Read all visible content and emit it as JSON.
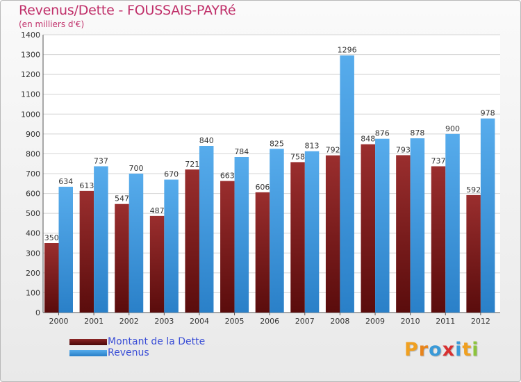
{
  "chart_data": {
    "type": "bar",
    "title": "Revenus/Dette - FOUSSAIS-PAYRé",
    "subtitle": "(en milliers d'€)",
    "categories": [
      "2000",
      "2001",
      "2002",
      "2003",
      "2004",
      "2005",
      "2006",
      "2007",
      "2008",
      "2009",
      "2010",
      "2011",
      "2012"
    ],
    "series": [
      {
        "name": "Montant de la Dette",
        "color": "#7a1a1a",
        "values": [
          350,
          613,
          547,
          487,
          721,
          663,
          606,
          758,
          792,
          848,
          793,
          737,
          592
        ]
      },
      {
        "name": "Revenus",
        "color": "#3f9be0",
        "values": [
          634,
          737,
          700,
          670,
          840,
          784,
          825,
          813,
          1296,
          876,
          878,
          900,
          978
        ]
      }
    ],
    "ylim": [
      0,
      1400
    ],
    "yticks": [
      0,
      100,
      200,
      300,
      400,
      500,
      600,
      700,
      800,
      900,
      1000,
      1100,
      1200,
      1300,
      1400
    ],
    "grid": true,
    "legend": "bottom-left"
  },
  "logo": {
    "letters": [
      {
        "ch": "P",
        "color": "#f0a020"
      },
      {
        "ch": "r",
        "color": "#e8841c"
      },
      {
        "ch": "o",
        "color": "#3a9ad8"
      },
      {
        "ch": "x",
        "color": "#d83030"
      },
      {
        "ch": "i",
        "color": "#3a9ad8"
      },
      {
        "ch": "t",
        "color": "#f0a020"
      },
      {
        "ch": "i",
        "color": "#8cc43c"
      }
    ]
  }
}
